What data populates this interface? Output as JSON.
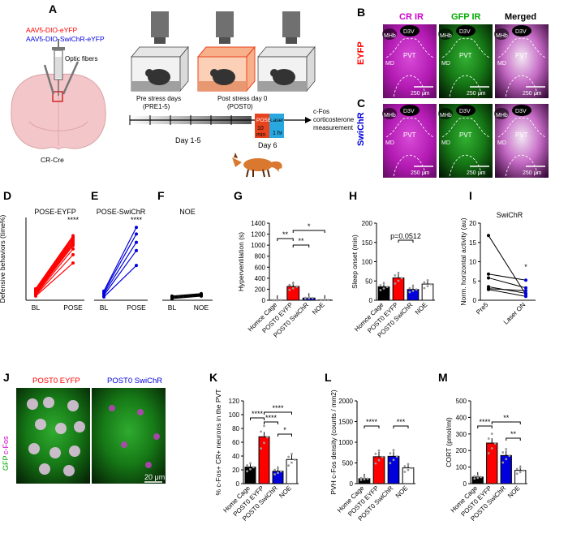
{
  "panels": {
    "A": {
      "letter": "A",
      "virus_1": "AAV5-DIO-eYFP",
      "virus_2": "AAV5-DIO-SwiChR-eYFP",
      "fibers": "Optic fibers",
      "mouse_line": "CR-Cre",
      "pre_stress_1": "Pre stress days",
      "pre_stress_2": "(PRE1-5)",
      "post_stress_1": "Post stress day 0",
      "post_stress_2": "(POST0)",
      "pose_label": "POSE",
      "laser_label": "Laser",
      "ten_min_1": "10",
      "ten_min_2": "min",
      "one_hr": "1 hr",
      "cfos_1": "c-Fos",
      "cfos_2": "corticosterone",
      "cfos_3": "measurement",
      "day15": "Day 1-5",
      "day6": "Day 6",
      "colors": {
        "eyfp": "#ff0000",
        "swichr": "#0000dd",
        "pose_box": "#e8431f",
        "laser_box": "#29a8e0",
        "stress_bg": "#f7b08a"
      }
    },
    "B": {
      "letter": "B",
      "col_cr": "CR IR",
      "col_gfp": "GFP IR",
      "col_merged": "Merged",
      "row": "EYFP",
      "scale": "250 μm",
      "regions": {
        "mhb": "MHb",
        "d3v": "D3V",
        "pvt": "PVT",
        "md": "MD"
      }
    },
    "C": {
      "letter": "C",
      "row": "SwiChR",
      "scale": "250 μm"
    },
    "D": {
      "letter": "D",
      "title": "POSE-EYFP",
      "ylabel": "Defensive behaviors (time%)",
      "x1": "BL",
      "x2": "POSE",
      "sig": "****",
      "bl": [
        5,
        6,
        7,
        8,
        9,
        10,
        11,
        12,
        13,
        14
      ],
      "pose": [
        45,
        55,
        62,
        66,
        68,
        70,
        72,
        74,
        76,
        78
      ]
    },
    "E": {
      "letter": "E",
      "title": "POSE-SwiChR",
      "x1": "BL",
      "x2": "POSE",
      "sig": "****",
      "bl": [
        4,
        6,
        8,
        10,
        11
      ],
      "pose": [
        42,
        60,
        70,
        80,
        88
      ]
    },
    "F": {
      "letter": "F",
      "title": "NOE",
      "x1": "BL",
      "x2": "NOE",
      "bl": [
        2,
        3,
        4,
        5
      ],
      "pose": [
        5,
        6,
        7,
        8
      ]
    },
    "G": {
      "letter": "G",
      "ylabel": "Hyperventilation (s)",
      "sig1": "**",
      "sig2": "**",
      "sig3": "*",
      "cats": [
        "Homce Cage",
        "POST0 EYFP",
        "POST0 SwiChR",
        "NOE"
      ],
      "ticks": [
        "0",
        "200",
        "400",
        "600",
        "800",
        "1000",
        "1200",
        "1400"
      ],
      "values": [
        2,
        250,
        40,
        5
      ]
    },
    "H": {
      "letter": "H",
      "ylabel": "Sleep onset (min)",
      "pval": "p=0.0512",
      "cats": [
        "Homce Cage",
        "POST0 EYFP",
        "POST0 SwiChR",
        "NOE"
      ],
      "ticks": [
        "0",
        "50",
        "100",
        "150",
        "200"
      ],
      "values": [
        35,
        58,
        28,
        42
      ]
    },
    "I": {
      "letter": "I",
      "title": "SwiChR",
      "ylabel": "Norm. horizontal activity (au)",
      "sig": "*",
      "x1": "Pre5",
      "x2": "Laser ON",
      "ticks": [
        "0",
        "5",
        "10",
        "15",
        "20"
      ],
      "pre": [
        16.8,
        6.8,
        5.8,
        3.5,
        3.0,
        2.8
      ],
      "on": [
        1.5,
        5.2,
        3.2,
        1.8,
        2.5,
        1.0
      ]
    },
    "J": {
      "letter": "J",
      "left": "POST0 EYFP",
      "right": "POST0 SwiChR",
      "ylab_gfp": "GFP",
      "ylab_cfos": "c-Fos",
      "scale": "20 μm"
    },
    "K": {
      "letter": "K",
      "ylabel": "% c-Fos+ CR+ neurons in the PVT",
      "sig": [
        "****",
        "****",
        "****",
        "*"
      ],
      "cats": [
        "Home Cage",
        "POST0 EYFP",
        "POST0 SwiChR",
        "NOE"
      ],
      "ticks": [
        "0",
        "20",
        "40",
        "60",
        "80",
        "100",
        "120"
      ],
      "values": [
        24,
        68,
        18,
        35
      ]
    },
    "L": {
      "letter": "L",
      "ylabel": "PVH c-Fos density (counts / mm2)",
      "sig": [
        "****",
        "***"
      ],
      "cats": [
        "Home Cage",
        "POST0 EYFP",
        "POST0 SwiChR",
        "NOE"
      ],
      "ticks": [
        "0",
        "500",
        "1000",
        "1500",
        "2000"
      ],
      "values": [
        120,
        650,
        660,
        380
      ]
    },
    "M": {
      "letter": "M",
      "ylabel": "CORT (pmol/ml)",
      "sig": [
        "****",
        "**",
        "**"
      ],
      "cats": [
        "Home Cage",
        "POST0 EYFP",
        "POST0 SwiChR",
        "NOE"
      ],
      "ticks": [
        "0",
        "100",
        "200",
        "300",
        "400",
        "500"
      ],
      "values": [
        40,
        245,
        170,
        80
      ]
    }
  }
}
